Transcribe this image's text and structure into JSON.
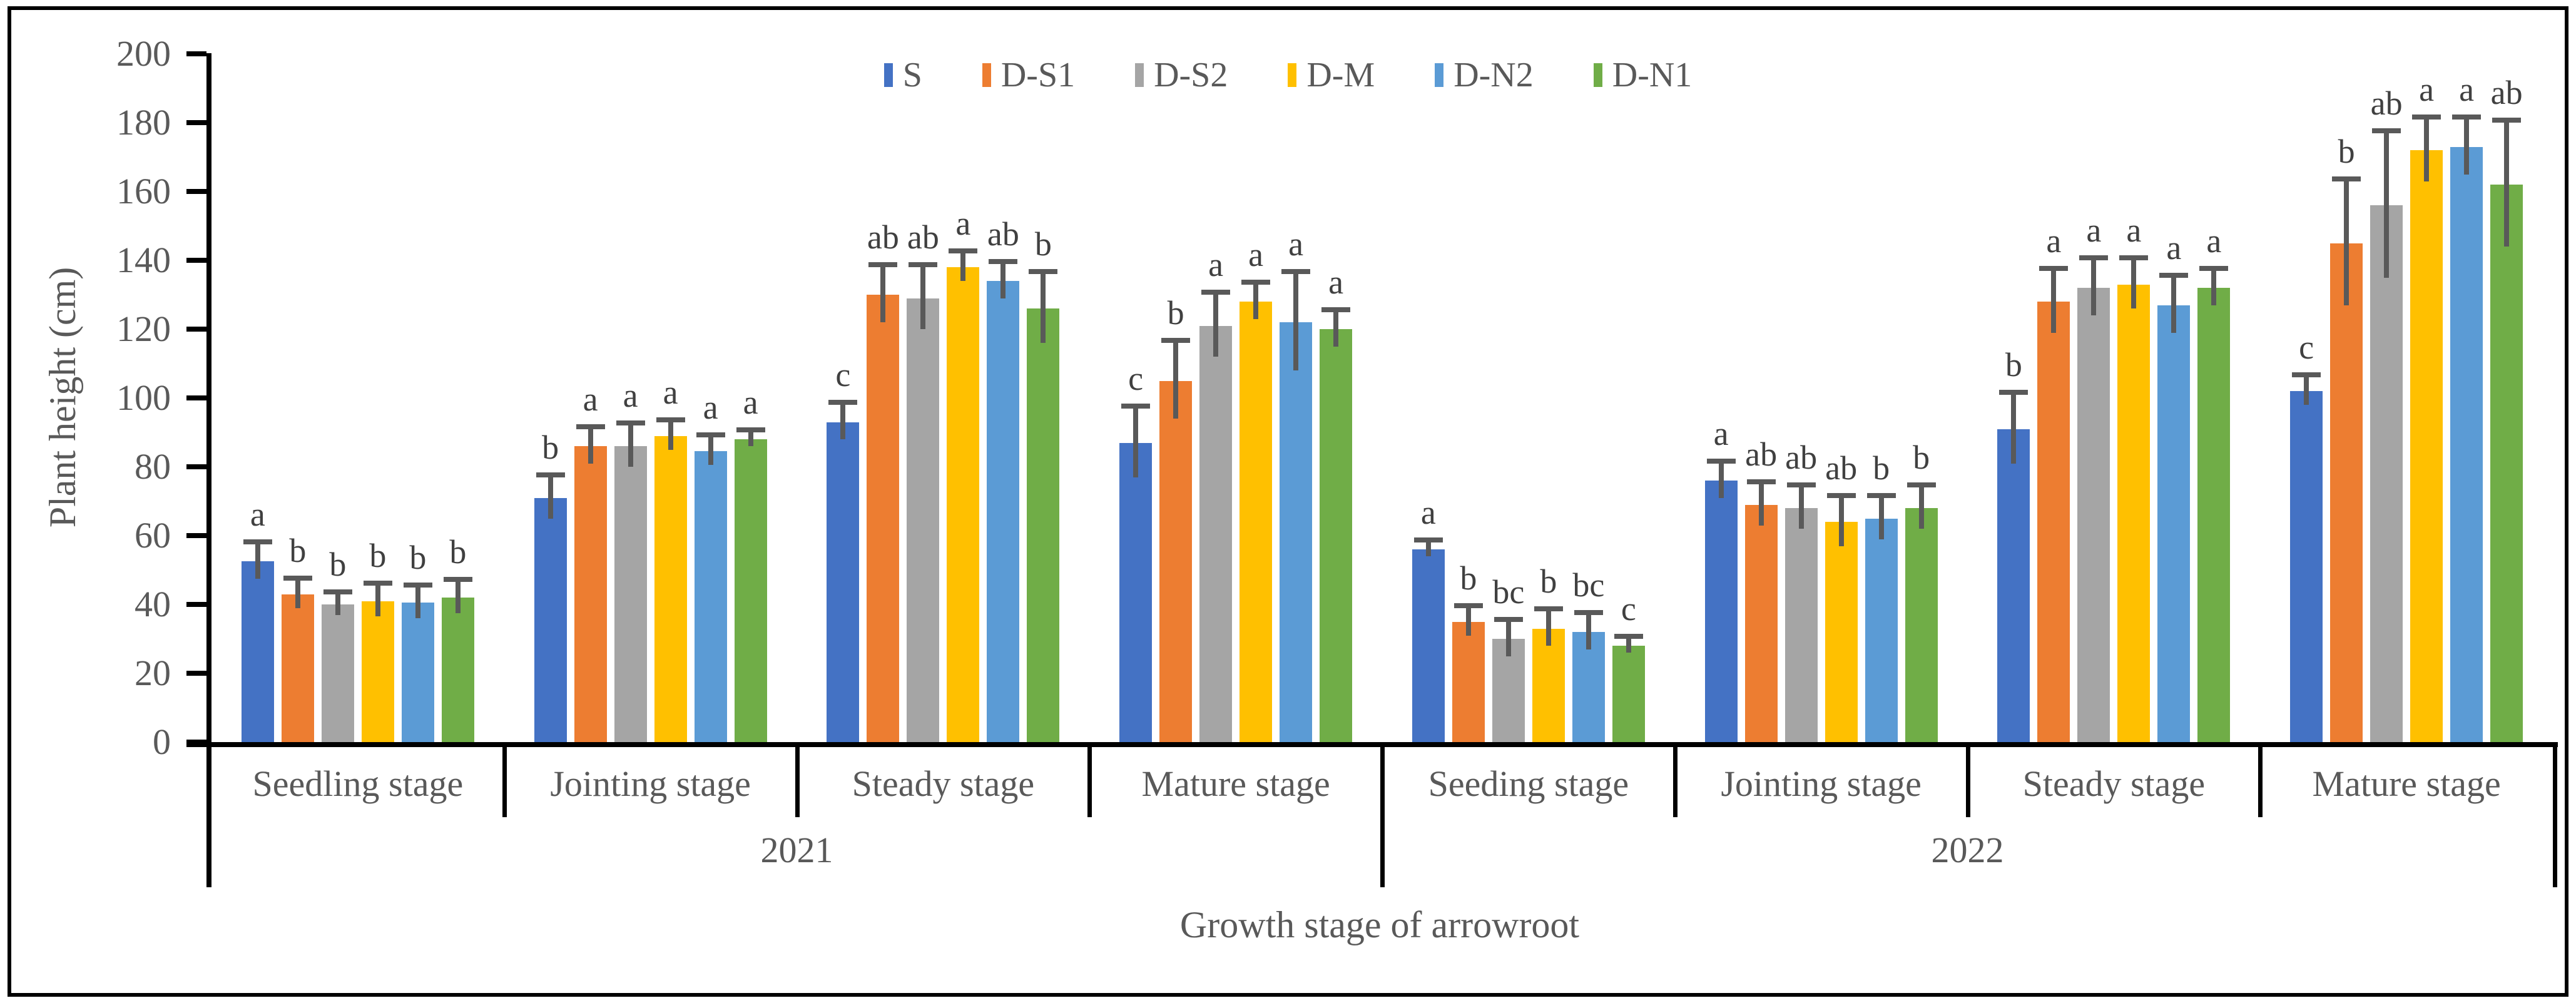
{
  "chart_data": {
    "type": "bar",
    "title": "",
    "ylabel": "Plant height (cm)",
    "xlabel": "Growth stage of arrowroot",
    "unit": "cm",
    "ylim": [
      0,
      200
    ],
    "ytick_step": 20,
    "yticks": [
      0,
      20,
      40,
      60,
      80,
      100,
      120,
      140,
      160,
      180,
      200
    ],
    "grid": false,
    "legend_position": "top-center",
    "group_labels": [
      {
        "year": "2021",
        "stages": [
          "Seedling stage",
          "Jointing stage",
          "Steady stage",
          "Mature stage"
        ]
      },
      {
        "year": "2022",
        "stages": [
          "Seeding stage",
          "Jointing stage",
          "Steady stage",
          "Mature stage"
        ]
      }
    ],
    "categories": [
      "2021 Seedling stage",
      "2021 Jointing stage",
      "2021 Steady stage",
      "2021 Mature stage",
      "2022 Seeding stage",
      "2022 Jointing stage",
      "2022 Steady stage",
      "2022 Mature stage"
    ],
    "series": [
      {
        "name": "S",
        "color": "#4472C4",
        "values": [
          52.5,
          71,
          93,
          87,
          56,
          76,
          91,
          102
        ],
        "errors": [
          5,
          6,
          5,
          10,
          2,
          5,
          10,
          4
        ],
        "sig_letters": [
          "a",
          "b",
          "c",
          "c",
          "a",
          "a",
          "b",
          "c"
        ]
      },
      {
        "name": "D-S1",
        "color": "#ED7D31",
        "values": [
          43,
          86,
          130,
          105,
          35,
          69,
          128,
          145
        ],
        "errors": [
          4,
          5,
          8,
          11,
          4,
          6,
          9,
          18
        ],
        "sig_letters": [
          "b",
          "a",
          "ab",
          "b",
          "b",
          "ab",
          "a",
          "b"
        ]
      },
      {
        "name": "D-S2",
        "color": "#A5A5A5",
        "values": [
          40,
          86,
          129,
          121,
          30,
          68,
          132,
          156
        ],
        "errors": [
          3,
          6,
          9,
          9,
          5,
          6,
          8,
          21
        ],
        "sig_letters": [
          "b",
          "a",
          "ab",
          "a",
          "bc",
          "ab",
          "a",
          "ab"
        ]
      },
      {
        "name": "D-M",
        "color": "#FFC000",
        "values": [
          41,
          89,
          138,
          128,
          33,
          64,
          133,
          172
        ],
        "errors": [
          4.5,
          4,
          4,
          5,
          5,
          7,
          7,
          9
        ],
        "sig_letters": [
          "b",
          "a",
          "a",
          "a",
          "b",
          "ab",
          "a",
          "a"
        ]
      },
      {
        "name": "D-N2",
        "color": "#5B9BD5",
        "values": [
          40.5,
          84.5,
          134,
          122,
          32,
          65,
          127,
          173
        ],
        "errors": [
          4.5,
          4,
          5,
          14,
          5,
          6,
          8,
          8
        ],
        "sig_letters": [
          "b",
          "a",
          "ab",
          "a",
          "bc",
          "b",
          "a",
          "a"
        ]
      },
      {
        "name": "D-N1",
        "color": "#70AD47",
        "values": [
          42,
          88,
          126,
          120,
          28,
          68,
          132,
          162
        ],
        "errors": [
          4.5,
          2,
          10,
          5,
          2,
          6,
          5,
          18
        ],
        "sig_letters": [
          "b",
          "a",
          "b",
          "a",
          "c",
          "b",
          "a",
          "ab"
        ]
      }
    ],
    "colors": {
      "axis": "#000000",
      "error_bar": "#595959",
      "text": "#595959",
      "sig_letter": "#404040"
    }
  }
}
